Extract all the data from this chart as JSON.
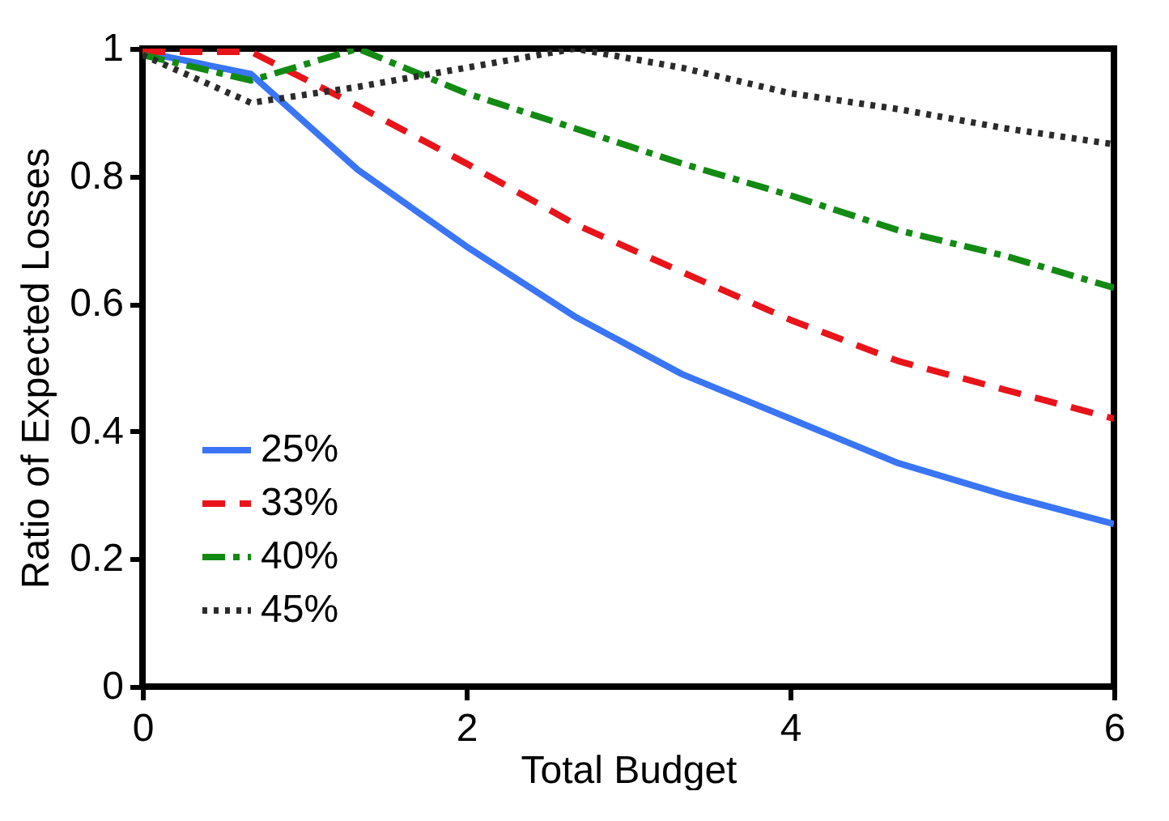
{
  "chart_data": {
    "type": "line",
    "xlabel": "Total Budget",
    "ylabel": "Ratio of Expected Losses",
    "x": [
      0,
      0.67,
      1.33,
      2,
      2.67,
      3.33,
      4,
      4.67,
      5.33,
      6
    ],
    "series": [
      {
        "name": "25%",
        "color": "#3a75f5",
        "line_style": "solid",
        "values": [
          0.995,
          0.96,
          0.81,
          0.69,
          0.58,
          0.49,
          0.42,
          0.35,
          0.3,
          0.255
        ]
      },
      {
        "name": "33%",
        "color": "#e8141a",
        "line_style": "dashed",
        "values": [
          0.995,
          0.995,
          0.91,
          0.82,
          0.725,
          0.65,
          0.575,
          0.51,
          0.465,
          0.42
        ]
      },
      {
        "name": "40%",
        "color": "#138a13",
        "line_style": "dashdot",
        "values": [
          0.99,
          0.95,
          1.0,
          0.93,
          0.875,
          0.82,
          0.77,
          0.715,
          0.675,
          0.625
        ]
      },
      {
        "name": "45%",
        "color": "#2b2b2b",
        "line_style": "dotted",
        "values": [
          0.99,
          0.915,
          0.94,
          0.97,
          1.0,
          0.97,
          0.93,
          0.905,
          0.875,
          0.85
        ]
      }
    ],
    "xlim": [
      0,
      6
    ],
    "xticks": [
      0,
      2,
      4,
      6
    ],
    "ylim": [
      0,
      1
    ],
    "yticks": [
      0,
      0.2,
      0.4,
      0.6,
      0.8,
      1
    ],
    "legend": "bottom left",
    "grid": false,
    "marker": "none"
  }
}
